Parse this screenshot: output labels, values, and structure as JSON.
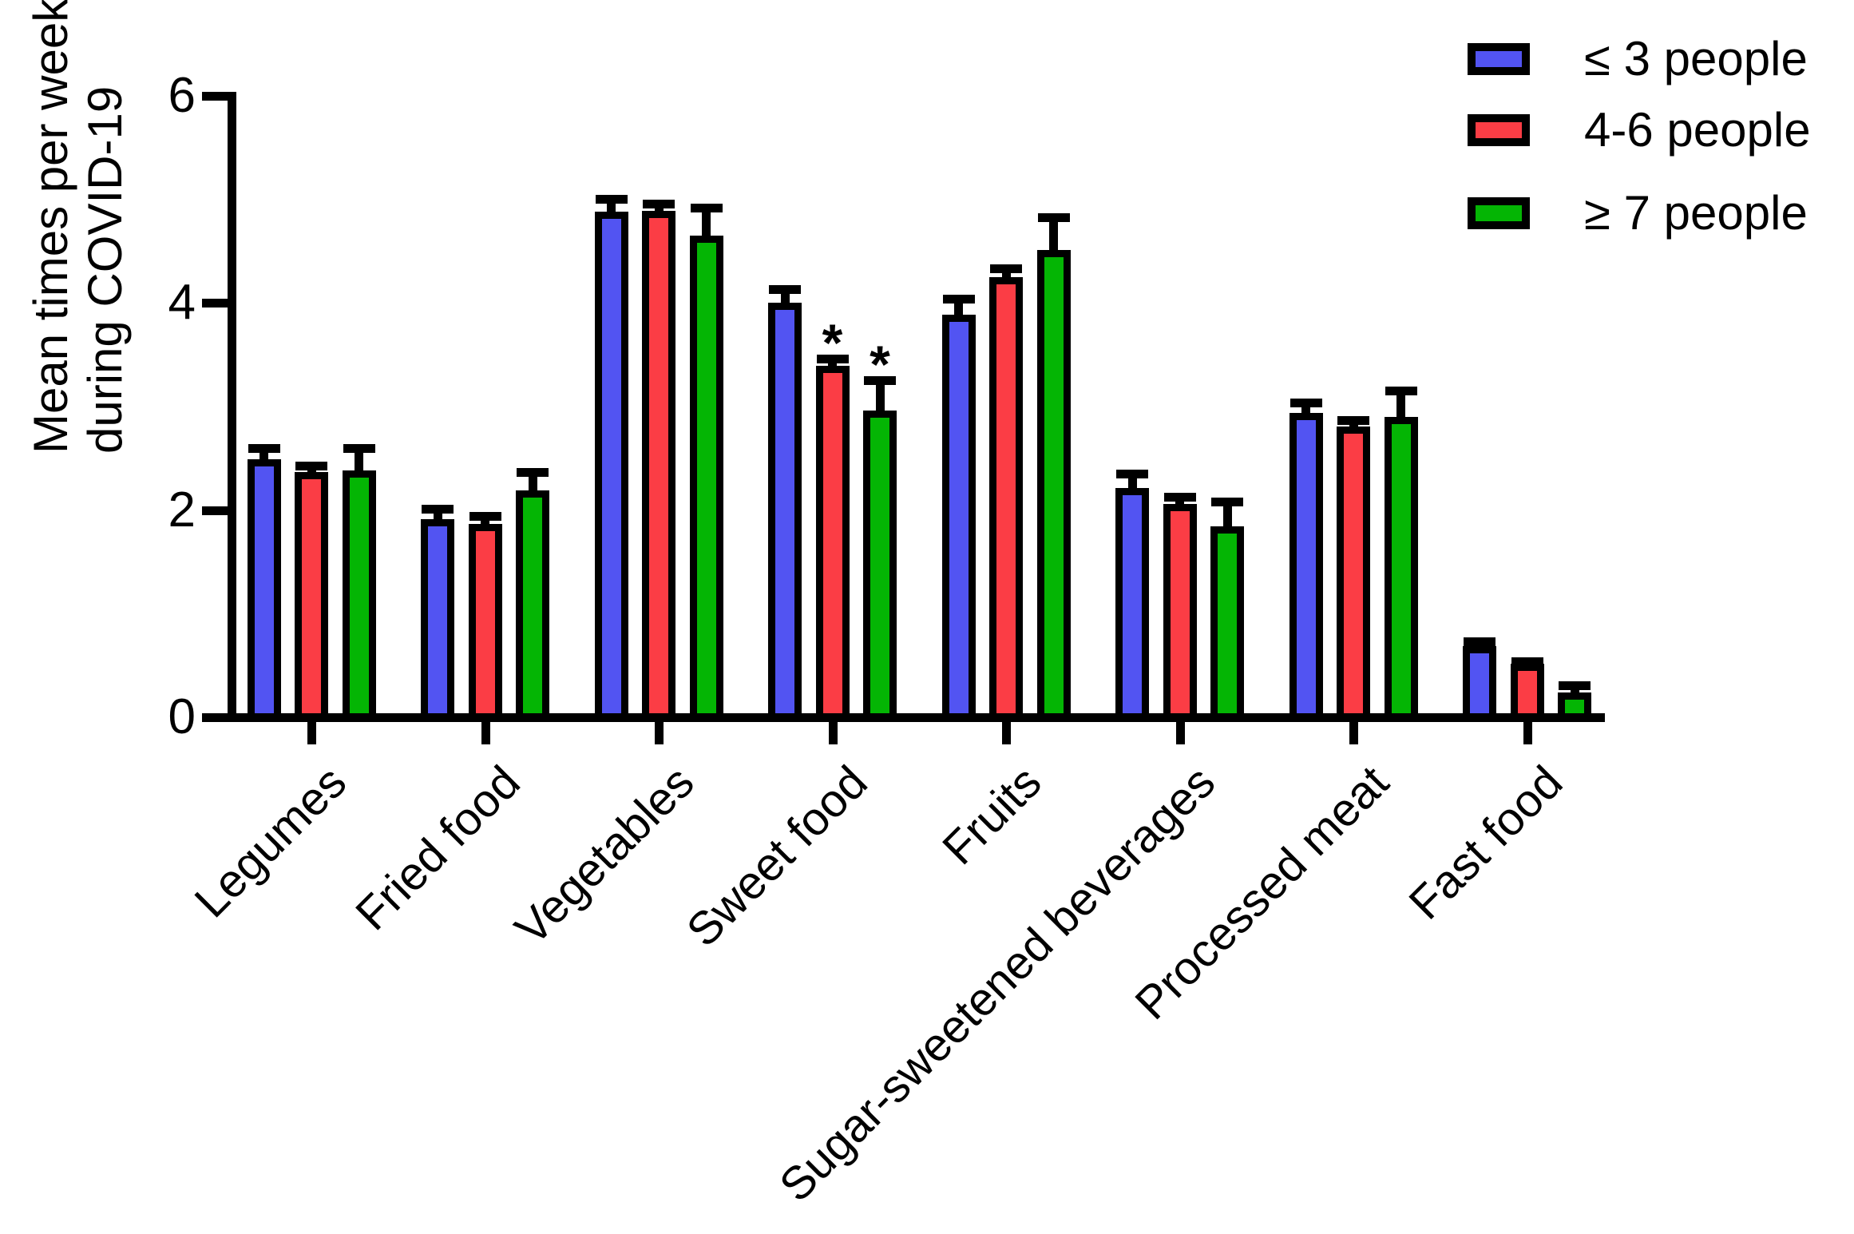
{
  "chart_data": {
    "type": "bar",
    "title": "",
    "ylabel": "Mean times per week during COVID-19",
    "ylabel_lines": [
      "Mean times per week",
      "during COVID-19"
    ],
    "xlabel": "",
    "ylim": [
      0,
      6
    ],
    "yticks": [
      0,
      2,
      4,
      6
    ],
    "grid": false,
    "legend_position": "top-right",
    "categories": [
      "Legumes",
      "Fried food",
      "Vegetables",
      "Sweet food",
      "Fruits",
      "Sugar-sweetened beverages",
      "Processed meat",
      "Fast food"
    ],
    "series": [
      {
        "name": "≤ 3 people",
        "color": "#5254F2",
        "values": [
          2.49,
          1.91,
          4.88,
          4.0,
          3.89,
          2.21,
          2.94,
          0.69
        ],
        "errors": [
          0.15,
          0.14,
          0.16,
          0.17,
          0.19,
          0.18,
          0.14,
          0.08
        ]
      },
      {
        "name": "4-6 people",
        "color": "#FB3D45",
        "values": [
          2.37,
          1.87,
          4.89,
          3.39,
          4.25,
          2.06,
          2.81,
          0.52
        ],
        "errors": [
          0.1,
          0.11,
          0.11,
          0.11,
          0.12,
          0.11,
          0.1,
          0.06
        ]
      },
      {
        "name": "≥ 7 people",
        "color": "#04B504",
        "values": [
          2.38,
          2.19,
          4.65,
          2.96,
          4.51,
          1.84,
          2.9,
          0.24
        ],
        "errors": [
          0.26,
          0.22,
          0.31,
          0.33,
          0.36,
          0.28,
          0.29,
          0.11
        ]
      }
    ],
    "annotations": [
      {
        "category_index": 3,
        "series_index": 1,
        "text": "*"
      },
      {
        "category_index": 3,
        "series_index": 2,
        "text": "*"
      }
    ]
  },
  "colors": {
    "axis": "#000000",
    "bar_border": "#000000",
    "background": "#FFFFFF"
  }
}
